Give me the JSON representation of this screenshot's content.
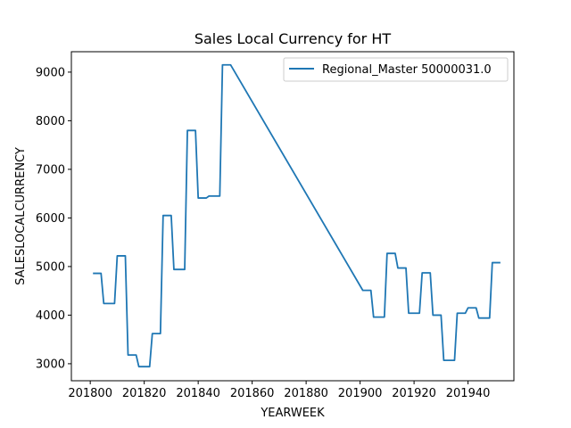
{
  "chart_data": {
    "type": "line",
    "title": "Sales Local Currency for HT",
    "xlabel": "YEARWEEK",
    "ylabel": "SALESLOCALCURRENCY",
    "xlim": [
      201793,
      201957
    ],
    "ylim": [
      2650,
      9420
    ],
    "xticks": [
      201800,
      201820,
      201840,
      201860,
      201880,
      201900,
      201920,
      201940
    ],
    "yticks": [
      3000,
      4000,
      5000,
      6000,
      7000,
      8000,
      9000
    ],
    "grid": false,
    "legend_position": "top-right",
    "series_color": "#1f77b4",
    "series": [
      {
        "name": "Regional_Master 50000031.0",
        "x": [
          201801,
          201802,
          201803,
          201804,
          201805,
          201806,
          201807,
          201808,
          201809,
          201810,
          201811,
          201812,
          201813,
          201814,
          201815,
          201816,
          201817,
          201818,
          201819,
          201820,
          201821,
          201822,
          201823,
          201824,
          201825,
          201826,
          201827,
          201828,
          201829,
          201830,
          201831,
          201832,
          201833,
          201834,
          201835,
          201836,
          201837,
          201838,
          201839,
          201840,
          201841,
          201842,
          201843,
          201844,
          201845,
          201846,
          201847,
          201848,
          201849,
          201850,
          201851,
          201852,
          201901,
          201902,
          201903,
          201904,
          201905,
          201906,
          201907,
          201908,
          201909,
          201910,
          201911,
          201912,
          201913,
          201914,
          201915,
          201916,
          201917,
          201918,
          201919,
          201920,
          201921,
          201922,
          201923,
          201924,
          201925,
          201926,
          201927,
          201928,
          201929,
          201930,
          201931,
          201932,
          201933,
          201934,
          201935,
          201936,
          201937,
          201938,
          201939,
          201940,
          201941,
          201942,
          201943,
          201944,
          201945,
          201946,
          201947,
          201948,
          201949,
          201950,
          201951,
          201952
        ],
        "y": [
          4860,
          4860,
          4860,
          4860,
          4240,
          4240,
          4240,
          4240,
          4240,
          5220,
          5220,
          5220,
          5220,
          3180,
          3180,
          3180,
          3180,
          2940,
          2940,
          2940,
          2940,
          2940,
          3620,
          3620,
          3620,
          3620,
          6050,
          6050,
          6050,
          6050,
          4940,
          4940,
          4940,
          4940,
          4940,
          7800,
          7800,
          7800,
          7800,
          6410,
          6410,
          6410,
          6410,
          6450,
          6450,
          6450,
          6450,
          6450,
          9150,
          9150,
          9150,
          9150,
          4510,
          4510,
          4510,
          4510,
          3960,
          3960,
          3960,
          3960,
          3960,
          5270,
          5270,
          5270,
          5270,
          4970,
          4970,
          4970,
          4970,
          4040,
          4040,
          4040,
          4040,
          4040,
          4870,
          4870,
          4870,
          4870,
          4000,
          4000,
          4000,
          4000,
          3070,
          3070,
          3070,
          3070,
          3070,
          4040,
          4040,
          4040,
          4040,
          4150,
          4150,
          4150,
          4150,
          3940,
          3940,
          3940,
          3940,
          3940,
          5080,
          5080,
          5080,
          5080
        ]
      }
    ]
  }
}
